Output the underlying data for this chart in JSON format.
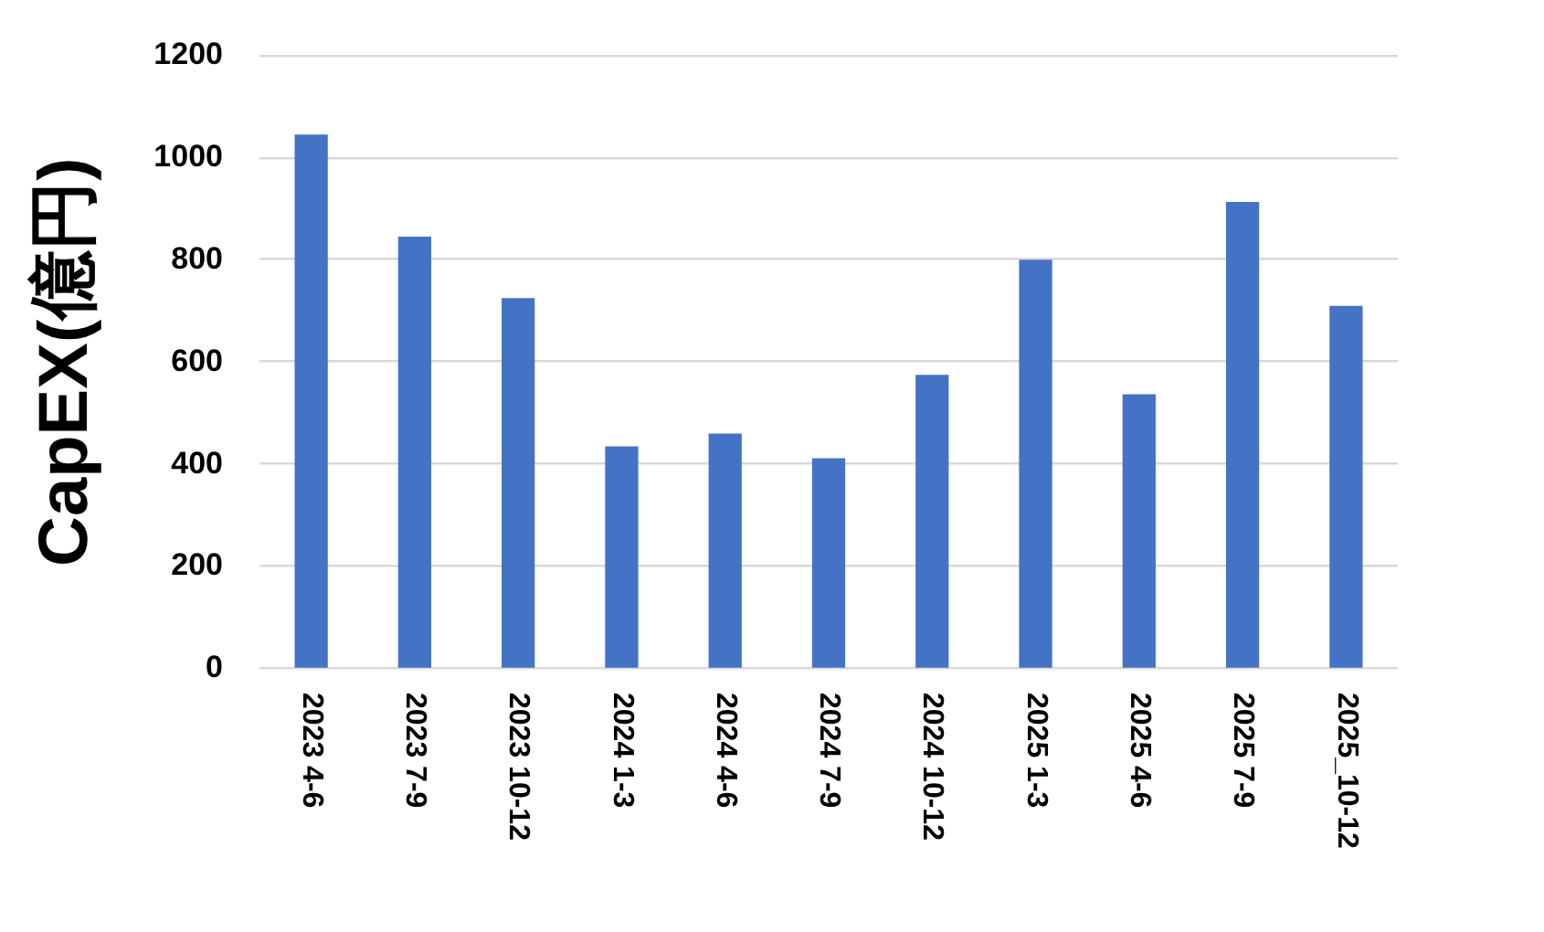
{
  "chart_data": {
    "type": "bar",
    "ylabel": "CapEX(億円)",
    "categories": [
      "2023 4-6",
      "2023 7-9",
      "2023 10-12",
      "2024 1-3",
      "2024 4-6",
      "2024 7-9",
      "2024 10-12",
      "2025 1-3",
      "2025 4-6",
      "2025 7-9",
      "2025_10-12"
    ],
    "values": [
      1045,
      845,
      725,
      435,
      460,
      412,
      575,
      800,
      537,
      913,
      710
    ],
    "color": "#4472c4",
    "ylim": [
      0,
      1200
    ],
    "yticks": [
      0,
      200,
      400,
      600,
      800,
      1000,
      1200
    ],
    "grid": "y"
  }
}
